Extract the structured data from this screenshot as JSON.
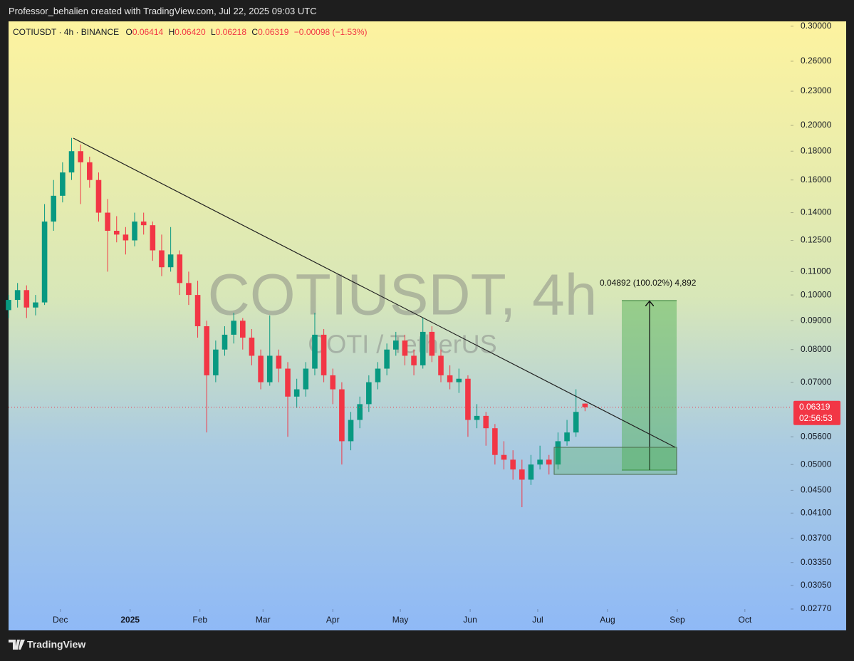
{
  "header": {
    "created_by": "Professor_behalien created with TradingView.com, Jul 22, 2025 09:03 UTC",
    "brand": "TradingView"
  },
  "chart_data": {
    "type": "candlestick",
    "symbol_line": "COTIUSDT · 4h · BINANCE",
    "ohlc": [
      {
        "key": "O",
        "value": "0.06414"
      },
      {
        "key": "H",
        "value": "0.06420"
      },
      {
        "key": "L",
        "value": "0.06218"
      },
      {
        "key": "C",
        "value": "0.06319"
      }
    ],
    "change": "−0.00098 (−1.53%)",
    "watermark": "COTIUSDT, 4h",
    "watermark_sub": "COTI / TetherUS",
    "annotation": "0.04892 (100.02%) 4,892",
    "last_price": 0.06319,
    "countdown": "02:56:53",
    "up_color": "#089981",
    "down_color": "#f23645",
    "log_scale": true,
    "grid": false,
    "x": [
      -23,
      -19,
      -15,
      -11,
      -7,
      -3,
      1,
      5,
      9,
      13,
      17,
      21,
      25,
      29,
      33,
      37,
      41,
      45,
      49,
      53,
      57,
      61,
      65,
      69,
      73,
      77,
      81,
      85,
      89,
      93,
      97,
      101,
      105,
      109,
      113,
      117,
      121,
      125,
      129,
      133,
      137,
      141,
      145,
      149,
      153,
      157,
      161,
      165,
      169,
      173,
      177,
      181,
      185,
      189,
      193,
      197,
      201,
      205,
      209,
      213,
      217,
      221,
      225,
      229,
      233
    ],
    "open": [
      0.094,
      0.098,
      0.102,
      0.095,
      0.097,
      0.135,
      0.15,
      0.165,
      0.18,
      0.172,
      0.16,
      0.14,
      0.13,
      0.128,
      0.125,
      0.135,
      0.133,
      0.12,
      0.112,
      0.118,
      0.105,
      0.1,
      0.088,
      0.072,
      0.08,
      0.085,
      0.09,
      0.084,
      0.078,
      0.07,
      0.078,
      0.074,
      0.066,
      0.068,
      0.074,
      0.085,
      0.072,
      0.068,
      0.055,
      0.06,
      0.064,
      0.07,
      0.074,
      0.08,
      0.083,
      0.078,
      0.075,
      0.086,
      0.078,
      0.072,
      0.07,
      0.071,
      0.06,
      0.061,
      0.058,
      0.052,
      0.051,
      0.049,
      0.047,
      0.05,
      0.051,
      0.05,
      0.055,
      0.057,
      0.06414
    ],
    "high": [
      0.1,
      0.105,
      0.104,
      0.1,
      0.145,
      0.16,
      0.172,
      0.19,
      0.185,
      0.176,
      0.165,
      0.148,
      0.138,
      0.132,
      0.14,
      0.14,
      0.135,
      0.128,
      0.132,
      0.12,
      0.11,
      0.106,
      0.09,
      0.083,
      0.088,
      0.093,
      0.091,
      0.087,
      0.08,
      0.092,
      0.08,
      0.076,
      0.071,
      0.076,
      0.093,
      0.087,
      0.074,
      0.07,
      0.062,
      0.066,
      0.072,
      0.076,
      0.082,
      0.086,
      0.085,
      0.08,
      0.091,
      0.088,
      0.08,
      0.075,
      0.074,
      0.072,
      0.064,
      0.062,
      0.059,
      0.055,
      0.053,
      0.051,
      0.052,
      0.054,
      0.052,
      0.057,
      0.06,
      0.068,
      0.0642
    ],
    "low": [
      0.091,
      0.095,
      0.091,
      0.092,
      0.096,
      0.13,
      0.146,
      0.16,
      0.145,
      0.155,
      0.135,
      0.11,
      0.124,
      0.118,
      0.122,
      0.128,
      0.115,
      0.108,
      0.11,
      0.1,
      0.096,
      0.084,
      0.057,
      0.07,
      0.078,
      0.082,
      0.08,
      0.075,
      0.068,
      0.069,
      0.07,
      0.056,
      0.063,
      0.066,
      0.072,
      0.07,
      0.064,
      0.05,
      0.053,
      0.058,
      0.062,
      0.068,
      0.072,
      0.078,
      0.075,
      0.072,
      0.074,
      0.076,
      0.07,
      0.068,
      0.067,
      0.056,
      0.058,
      0.054,
      0.05,
      0.049,
      0.047,
      0.042,
      0.046,
      0.049,
      0.048,
      0.049,
      0.054,
      0.056,
      0.06218
    ],
    "close": [
      0.098,
      0.102,
      0.095,
      0.097,
      0.135,
      0.15,
      0.165,
      0.18,
      0.172,
      0.16,
      0.14,
      0.13,
      0.128,
      0.125,
      0.135,
      0.133,
      0.12,
      0.112,
      0.118,
      0.105,
      0.1,
      0.088,
      0.072,
      0.08,
      0.085,
      0.09,
      0.084,
      0.078,
      0.07,
      0.078,
      0.074,
      0.066,
      0.068,
      0.074,
      0.085,
      0.072,
      0.068,
      0.055,
      0.06,
      0.064,
      0.07,
      0.074,
      0.08,
      0.083,
      0.078,
      0.075,
      0.086,
      0.078,
      0.072,
      0.07,
      0.071,
      0.06,
      0.061,
      0.058,
      0.052,
      0.051,
      0.049,
      0.047,
      0.05,
      0.051,
      0.05,
      0.055,
      0.057,
      0.062,
      0.06319
    ],
    "xlim": [
      -23,
      324.3
    ],
    "xticks": [
      {
        "value": 0,
        "label": "Dec"
      },
      {
        "value": 31,
        "label": "2025"
      },
      {
        "value": 62,
        "label": "Feb"
      },
      {
        "value": 90,
        "label": "Mar"
      },
      {
        "value": 121,
        "label": "Apr"
      },
      {
        "value": 151,
        "label": "May"
      },
      {
        "value": 182,
        "label": "Jun"
      },
      {
        "value": 212,
        "label": "Jul"
      },
      {
        "value": 243,
        "label": "Aug"
      },
      {
        "value": 274,
        "label": "Sep"
      },
      {
        "value": 304,
        "label": "Oct"
      }
    ],
    "ylim": [
      0.0277,
      0.306
    ],
    "yticks": [
      {
        "value": 0.3,
        "label": "0.30000"
      },
      {
        "value": 0.26,
        "label": "0.26000"
      },
      {
        "value": 0.23,
        "label": "0.23000"
      },
      {
        "value": 0.2,
        "label": "0.20000"
      },
      {
        "value": 0.18,
        "label": "0.18000"
      },
      {
        "value": 0.16,
        "label": "0.16000"
      },
      {
        "value": 0.14,
        "label": "0.14000"
      },
      {
        "value": 0.125,
        "label": "0.12500"
      },
      {
        "value": 0.11,
        "label": "0.11000"
      },
      {
        "value": 0.1,
        "label": "0.10000"
      },
      {
        "value": 0.09,
        "label": "0.09000"
      },
      {
        "value": 0.08,
        "label": "0.08000"
      },
      {
        "value": 0.07,
        "label": "0.07000"
      },
      {
        "value": 0.056,
        "label": "0.05600"
      },
      {
        "value": 0.05,
        "label": "0.05000"
      },
      {
        "value": 0.045,
        "label": "0.04500"
      },
      {
        "value": 0.041,
        "label": "0.04100"
      },
      {
        "value": 0.037,
        "label": "0.03700"
      },
      {
        "value": 0.0335,
        "label": "0.03350"
      },
      {
        "value": 0.0305,
        "label": "0.03050"
      },
      {
        "value": 0.0277,
        "label": "0.02770"
      }
    ]
  }
}
